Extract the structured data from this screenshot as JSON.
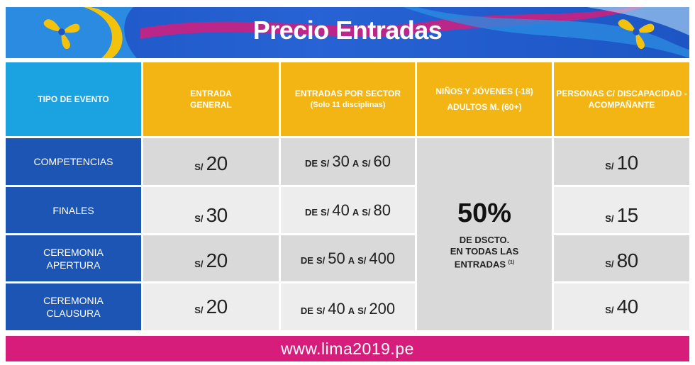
{
  "banner": {
    "title": "Precio Entradas",
    "colors": {
      "banner_blue": "#1d55c4",
      "accent_magenta": "#d61d7b",
      "accent_yellow": "#f3c20d"
    }
  },
  "logos": {
    "left": "lima2019-logo-icon",
    "right": "lima2019-logo-icon"
  },
  "headers": {
    "col1": "TIPO DE EVENTO",
    "col2_line1": "ENTRADA",
    "col2_line2": "GENERAL",
    "col3_line1": "ENTRADAS POR SECTOR",
    "col3_line2": "(Solo 11 disciplinas)",
    "col4_line1": "NIÑOS Y JÓVENES (-18)",
    "col4_line2": "ADULTOS M. (60+)",
    "col5_line1": "PERSONAS C/ DISCAPACIDAD -",
    "col5_line2": "ACOMPAÑANTE"
  },
  "currency": "S/",
  "word_de": "DE",
  "word_a": "A",
  "rows": [
    {
      "label_line1": "COMPETENCIAS",
      "label_line2": "",
      "general": "20",
      "sector_from": "30",
      "sector_to": "60",
      "disability": "10"
    },
    {
      "label_line1": "FINALES",
      "label_line2": "",
      "general": "30",
      "sector_from": "40",
      "sector_to": "80",
      "disability": "15"
    },
    {
      "label_line1": "CEREMONIA",
      "label_line2": "APERTURA",
      "general": "20",
      "sector_from": "50",
      "sector_to": "400",
      "disability": "80"
    },
    {
      "label_line1": "CEREMONIA",
      "label_line2": "CLAUSURA",
      "general": "20",
      "sector_from": "40",
      "sector_to": "200",
      "disability": "40"
    }
  ],
  "discount": {
    "percent": "50%",
    "line1": "DE DSCTO.",
    "line2": "EN TODAS LAS",
    "line3": "ENTRADAS",
    "footnote": "(1)"
  },
  "footer": {
    "url": "www.lima2019.pe"
  }
}
